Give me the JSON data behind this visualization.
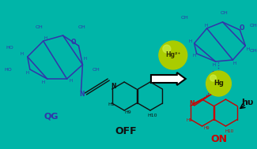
{
  "bg_color": "#00B5A8",
  "sugar_color": "#3333AA",
  "off_color": "#111111",
  "on_color": "#CC0000",
  "hg_ball_color": "#AACC00",
  "hg_ball_hi": "#CCEE44",
  "hg2plus_text": "Hg²⁺",
  "hg_text": "Hg",
  "hu_text": "hυ",
  "label_qg": "QG",
  "label_off": "OFF",
  "label_on": "ON"
}
